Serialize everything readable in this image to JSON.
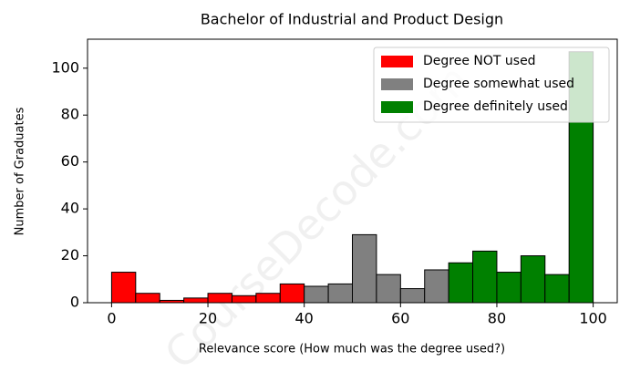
{
  "chart_data": {
    "type": "histogram",
    "title": "Bachelor of Industrial and Product Design",
    "xlabel": "Relevance score (How much was the degree used?)",
    "ylabel": "Number of Graduates",
    "watermark": "CourseDecode.com",
    "series": [
      {
        "name": "Degree NOT used",
        "color": "#ff0000",
        "bins": [
          0,
          5,
          10,
          15,
          20,
          25,
          30,
          35,
          40
        ],
        "values": [
          13,
          4,
          1,
          2,
          4,
          3,
          4,
          8
        ]
      },
      {
        "name": "Degree somewhat used",
        "color": "#808080",
        "bins": [
          40,
          45,
          50,
          55,
          60,
          65,
          70
        ],
        "values": [
          7,
          8,
          29,
          12,
          6,
          14
        ]
      },
      {
        "name": "Degree definitely used",
        "color": "#008000",
        "bins": [
          70,
          75,
          80,
          85,
          90,
          95,
          100
        ],
        "values": [
          17,
          22,
          13,
          20,
          12,
          107
        ]
      }
    ],
    "xlim": [
      -5,
      105
    ],
    "ylim": [
      0,
      112.35
    ],
    "xticks": [
      0,
      20,
      40,
      60,
      80,
      100
    ],
    "yticks": [
      0,
      20,
      40,
      60,
      80,
      100
    ],
    "legend": "upper right"
  }
}
